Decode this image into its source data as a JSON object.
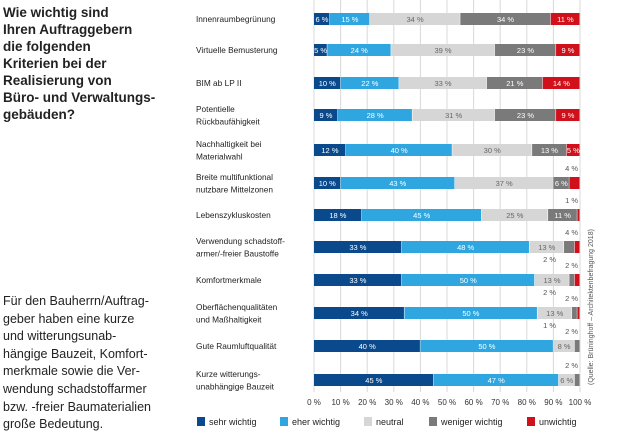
{
  "heading": "Wie wichtig sind\nIhren Auftraggebern\ndie folgenden\nKriterien bei der\nRealisierung von\nBüro- und Verwaltungs-\ngebäuden?",
  "paragraph": "Für den Bauherrn/Auftrag-\ngeber haben eine kurze\nund witterungsunab-\nhängige Bauzeit, Komfort-\nmerkmale sowie die Ver-\nwendung schadstoffarmer\nbzw. -freier Baumaterialien\ngroße Bedeutung.",
  "source": "(Quelle: Brüninghoff – Architektenbefragung 2018)",
  "chart_data": {
    "type": "bar",
    "orientation": "horizontal",
    "stacked": true,
    "xlim": [
      0,
      100
    ],
    "grid": true,
    "legend_placement": "bottom",
    "xticks": [
      "0 %",
      "10 %",
      "20 %",
      "30 %",
      "40 %",
      "50 %",
      "60 %",
      "70 %",
      "80 %",
      "90 %",
      "100 %"
    ],
    "categories": [
      [
        "Innenraumbegrünung"
      ],
      [
        "Virtuelle Bemusterung"
      ],
      [
        "BIM ab LP II"
      ],
      [
        "Potentielle",
        "Rückbaufähigkeit"
      ],
      [
        "Nachhaltigkeit bei",
        "Materialwahl"
      ],
      [
        "Breite multifunktional",
        "nutzbare Mittelzonen"
      ],
      [
        "Lebenszykluskosten"
      ],
      [
        "Verwendung schadstoff-",
        "armer/-freier Baustoffe"
      ],
      [
        "Komfortmerkmale"
      ],
      [
        "Oberflächenqualitäten",
        "und Maßhaltigkeit"
      ],
      [
        "Gute Raumluftqualität"
      ],
      [
        "Kurze witterungs-",
        "unabhängige Bauzeit"
      ]
    ],
    "series": [
      {
        "name": "sehr wichtig",
        "color": "#0a4a8c",
        "values": [
          6,
          5,
          10,
          9,
          12,
          10,
          18,
          33,
          33,
          34,
          40,
          45
        ]
      },
      {
        "name": "eher wichtig",
        "color": "#2fa6e0",
        "values": [
          15,
          24,
          22,
          28,
          40,
          43,
          45,
          48,
          50,
          50,
          50,
          47
        ]
      },
      {
        "name": "neutral",
        "color": "#d6d6d6",
        "values": [
          34,
          39,
          33,
          31,
          30,
          37,
          25,
          13,
          13,
          13,
          8,
          6
        ]
      },
      {
        "name": "weniger wichtig",
        "color": "#7a7a7a",
        "values": [
          34,
          23,
          21,
          23,
          13,
          6,
          11,
          4,
          2,
          2,
          2,
          2
        ]
      },
      {
        "name": "unwichtig",
        "color": "#d0101b",
        "values": [
          11,
          9,
          14,
          9,
          5,
          4,
          1,
          2,
          2,
          1,
          0,
          0
        ]
      }
    ]
  }
}
